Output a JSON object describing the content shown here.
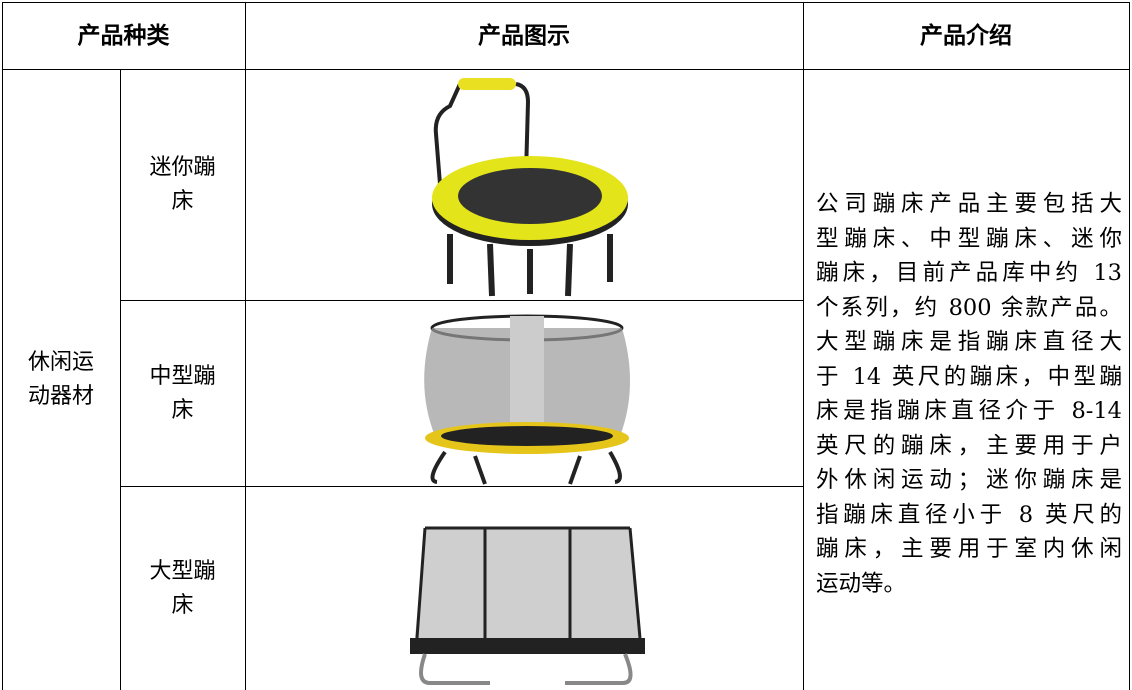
{
  "table": {
    "header": [
      "产品种类",
      "产品图示",
      "产品介绍"
    ],
    "category": "休闲运动器材",
    "rows": [
      {
        "name": "迷你蹦床"
      },
      {
        "name": "中型蹦床"
      },
      {
        "name": "大型蹦床"
      }
    ],
    "description": [
      "公司蹦床产品主要包括大",
      "型蹦床、中型蹦床、迷你",
      "蹦床，目前产品库中约 13",
      "个系列，约 800 余款产品。",
      "大型蹦床是指蹦床直径大",
      "于 14 英尺的蹦床，中型蹦",
      "床是指蹦床直径介于 8-14",
      "英尺的蹦床，主要用于户",
      "外休闲运动；迷你蹦床是",
      "指蹦床直径小于 8 英尺的",
      "蹦床，主要用于室内休闲",
      "运动等。"
    ]
  }
}
